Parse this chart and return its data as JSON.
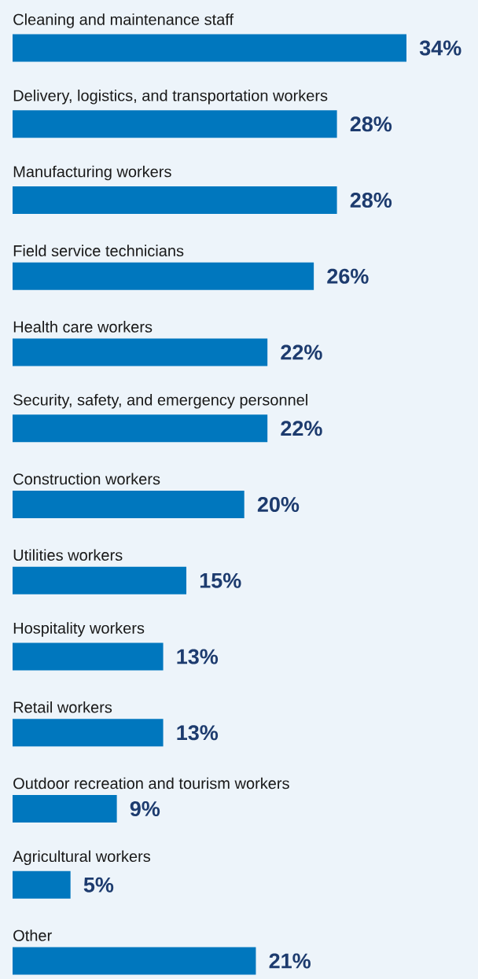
{
  "chart_data": {
    "type": "bar",
    "orientation": "horizontal",
    "color": "#0077be",
    "categories": [
      "Cleaning and maintenance staff",
      "Delivery, logistics, and transportation workers",
      "Manufacturing workers",
      "Field service technicians",
      "Health care workers",
      "Security, safety, and emergency personnel",
      "Construction workers",
      "Utilities workers",
      "Hospitality workers",
      "Retail workers",
      "Outdoor recreation and tourism workers",
      "Agricultural workers",
      "Other"
    ],
    "values": [
      34,
      28,
      28,
      26,
      22,
      22,
      20,
      15,
      13,
      13,
      9,
      5,
      21
    ],
    "value_labels": [
      "34%",
      "28%",
      "28%",
      "26%",
      "22%",
      "22%",
      "20%",
      "15%",
      "13%",
      "13%",
      "9%",
      "5%",
      "21%"
    ]
  }
}
